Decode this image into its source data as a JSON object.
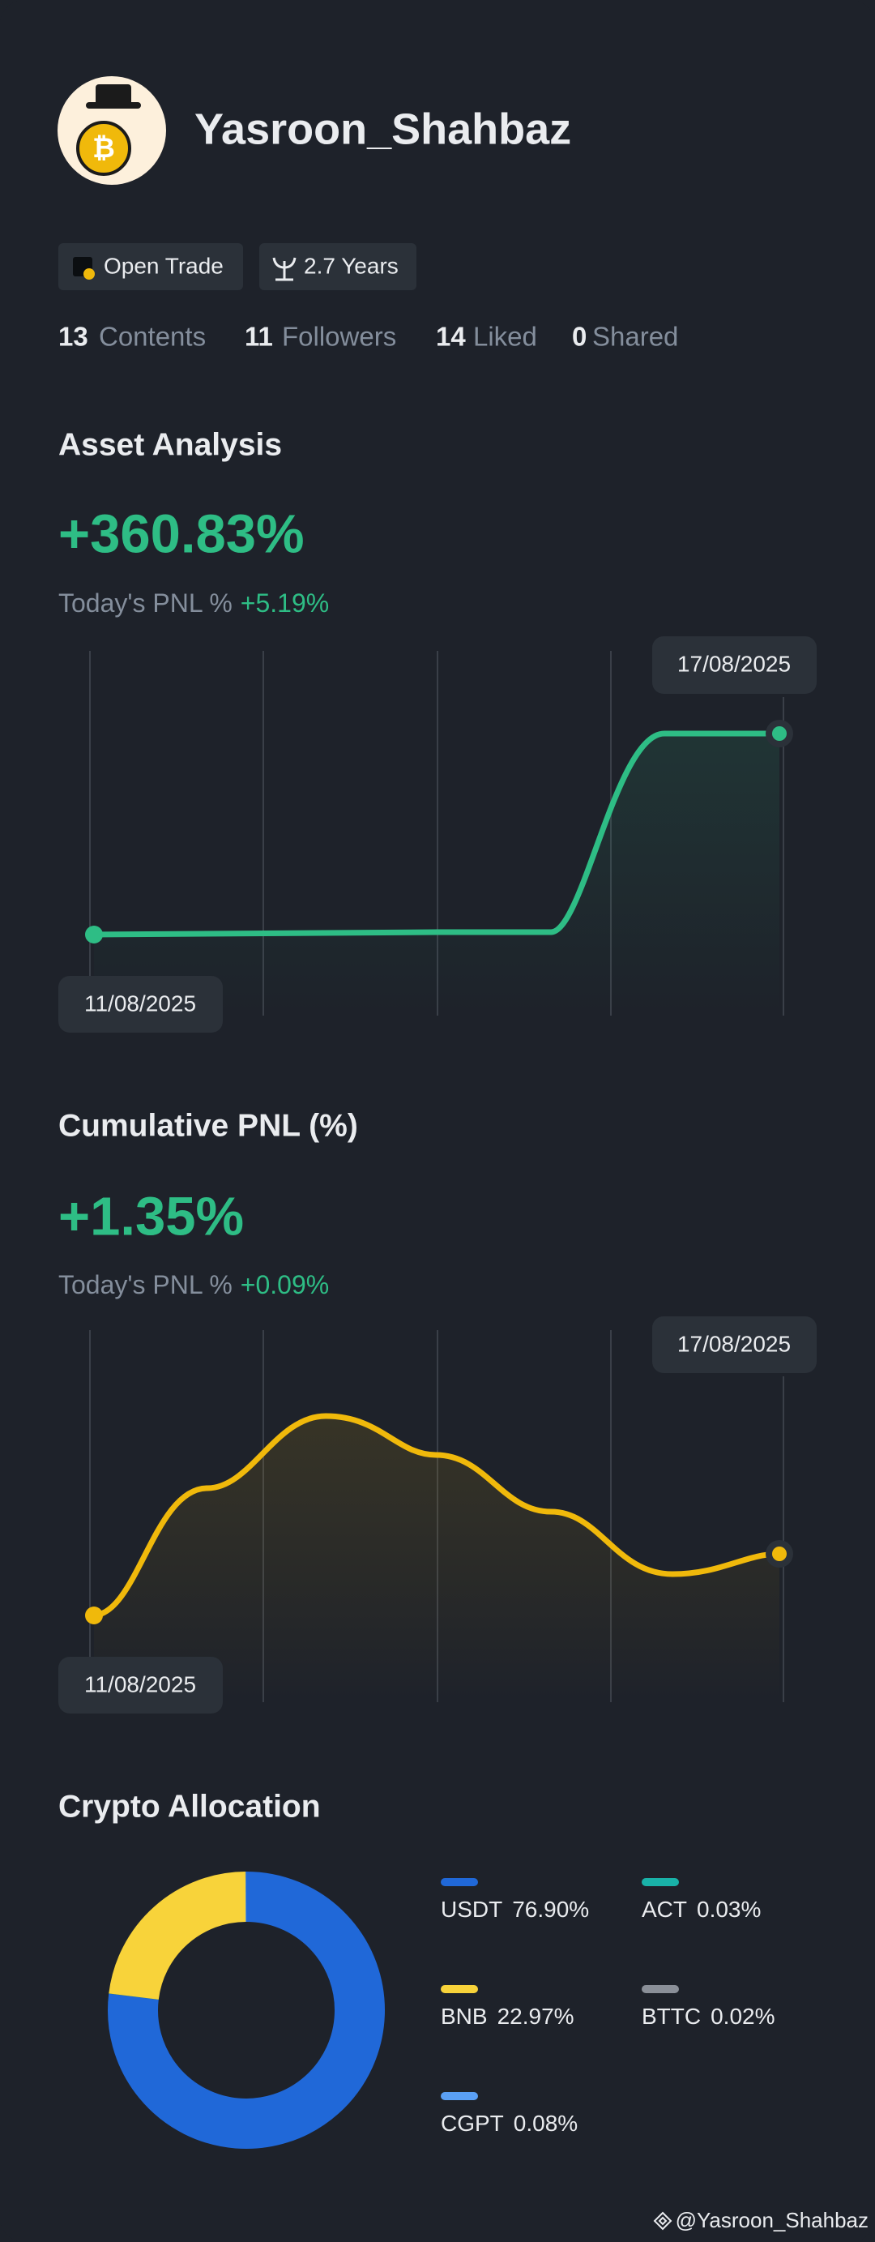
{
  "profile": {
    "name": "Yasroon_Shahbaz",
    "badges": [
      "Open Trade",
      "2.7 Years"
    ],
    "stats": [
      {
        "value": 13,
        "label": "Contents"
      },
      {
        "value": 11,
        "label": "Followers"
      },
      {
        "value": 14,
        "label": "Liked"
      },
      {
        "value": 0,
        "label": "Shared"
      }
    ]
  },
  "asset_analysis": {
    "title": "Asset Analysis",
    "value": "+360.83%",
    "today_label": "Today's PNL %",
    "today_value": "+5.19%",
    "start_date": "11/08/2025",
    "end_date": "17/08/2025"
  },
  "cumulative_pnl": {
    "title": "Cumulative PNL (%)",
    "value": "+1.35%",
    "today_label": "Today's PNL %",
    "today_value": "+0.09%",
    "start_date": "11/08/2025",
    "end_date": "17/08/2025"
  },
  "chart_data": {
    "type": "pie",
    "title": "Crypto Allocation",
    "categories": [
      "USDT",
      "ACT",
      "BNB",
      "BTTC",
      "CGPT"
    ],
    "values": [
      76.9,
      0.03,
      22.97,
      0.02,
      0.08
    ],
    "value_labels": [
      "76.90%",
      "0.03%",
      "22.97%",
      "0.02%",
      "0.08%"
    ],
    "colors": [
      "#2068d8",
      "#19b2a8",
      "#f8d33a",
      "#8a8f98",
      "#5aa0f5"
    ]
  },
  "watermark": "@Yasroon_Shahbaz"
}
